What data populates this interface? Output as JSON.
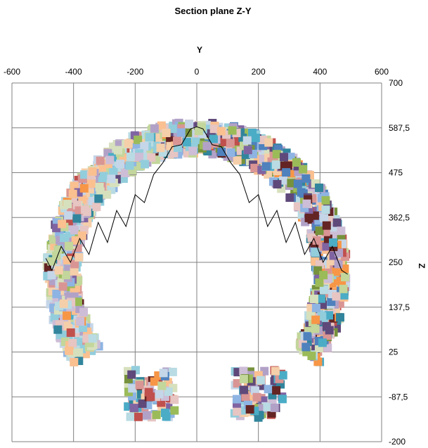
{
  "chart_data": {
    "type": "scatter",
    "title": "Section plane Z-Y",
    "xlabel": "Y",
    "ylabel": "Z",
    "x_axis_position": "top",
    "y_axis_position": "right",
    "xlim": [
      -600,
      600
    ],
    "ylim": [
      -200,
      700
    ],
    "x_ticks": [
      -600,
      -400,
      -200,
      0,
      200,
      400,
      600
    ],
    "y_ticks": [
      700,
      587.5,
      475,
      362.5,
      250,
      137.5,
      25,
      -87.5,
      -200
    ],
    "x_tick_labels": [
      "-600",
      "-400",
      "-200",
      "0",
      "200",
      "400",
      "600"
    ],
    "y_tick_labels": [
      "700",
      "587,5",
      "475",
      "362,5",
      "250",
      "137,5",
      "25",
      "-87,5",
      "-200"
    ],
    "grid": true,
    "legend": "none",
    "marker": "filled square",
    "series": [
      {
        "marker": "square",
        "description_points": "dense cloud of colored square markers forming a horseshoe ring",
        "ring_region": {
          "x_range": [
            -510,
            510
          ],
          "y_range": [
            -150,
            600
          ]
        }
      },
      {
        "line_color": "#000000",
        "values_left": [
          [
            -490,
            260
          ],
          [
            -470,
            230
          ],
          [
            -440,
            290
          ],
          [
            -410,
            250
          ],
          [
            -380,
            310
          ],
          [
            -350,
            270
          ],
          [
            -320,
            350
          ],
          [
            -290,
            300
          ],
          [
            -260,
            380
          ],
          [
            -230,
            340
          ],
          [
            -200,
            420
          ],
          [
            -170,
            400
          ],
          [
            -140,
            470
          ],
          [
            -110,
            500
          ],
          [
            -80,
            540
          ],
          [
            -50,
            545
          ],
          [
            -20,
            585
          ],
          [
            0,
            590
          ]
        ],
        "values_right": [
          [
            0,
            590
          ],
          [
            20,
            585
          ],
          [
            50,
            545
          ],
          [
            80,
            540
          ],
          [
            110,
            500
          ],
          [
            140,
            470
          ],
          [
            170,
            400
          ],
          [
            200,
            420
          ],
          [
            230,
            340
          ],
          [
            260,
            380
          ],
          [
            290,
            300
          ],
          [
            320,
            350
          ],
          [
            350,
            270
          ],
          [
            380,
            310
          ],
          [
            410,
            250
          ],
          [
            440,
            290
          ],
          [
            470,
            230
          ],
          [
            490,
            220
          ]
        ]
      }
    ],
    "colors": {
      "palette": [
        "#c5d6e8",
        "#e6c5c3",
        "#d7e0bd",
        "#cdbdd6",
        "#b9dbe3",
        "#f5cfaa",
        "#8eb4e3",
        "#d99594",
        "#c3d69b",
        "#b2a1c7",
        "#92cddc",
        "#fac090",
        "#4bacc6",
        "#f79646",
        "#9bbb59",
        "#8064a2",
        "#4f81bd",
        "#c0504d",
        "#31859c",
        "#632423",
        "#5f497a",
        "#76923c"
      ],
      "line": "#000000",
      "grid": "#808080"
    }
  }
}
